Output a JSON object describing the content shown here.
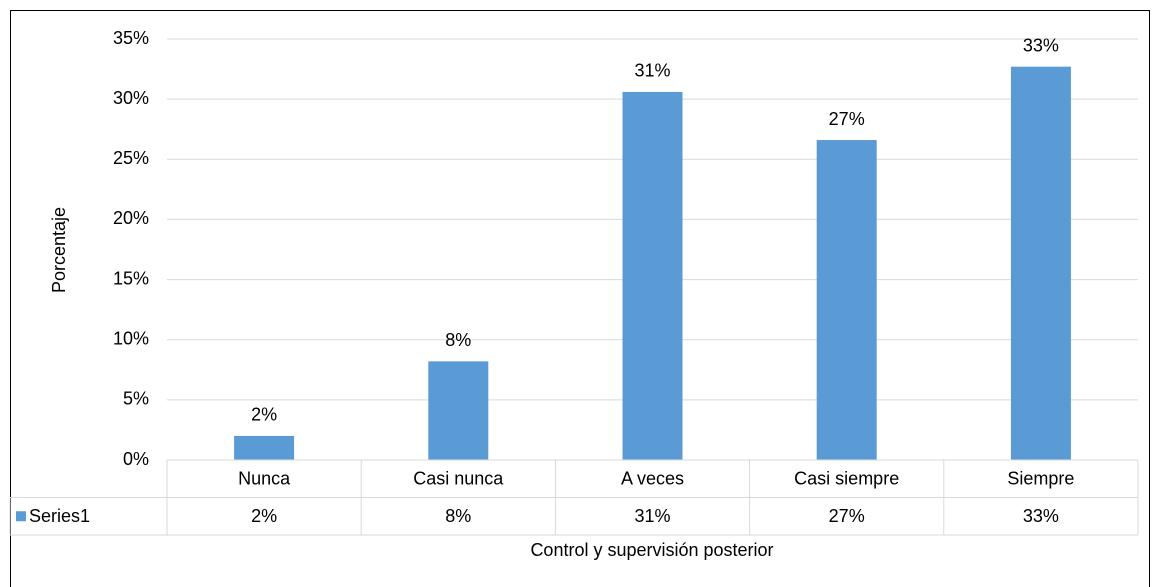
{
  "chart_data": {
    "type": "bar",
    "categories": [
      "Nunca",
      "Casi nunca",
      "A veces",
      "Casi siempre",
      "Siempre"
    ],
    "series": [
      {
        "name": "Series1",
        "color": "#5b9bd5",
        "values": [
          2.0,
          8.2,
          30.6,
          26.6,
          32.7
        ],
        "value_labels": [
          "2%",
          "8%",
          "31%",
          "27%",
          "33%"
        ]
      }
    ],
    "ylim": [
      0,
      35
    ],
    "yticks": [
      {
        "value": 0,
        "label": "0%"
      },
      {
        "value": 5,
        "label": "5%"
      },
      {
        "value": 10,
        "label": "10%"
      },
      {
        "value": 15,
        "label": "15%"
      },
      {
        "value": 20,
        "label": "20%"
      },
      {
        "value": 25,
        "label": "25%"
      },
      {
        "value": 30,
        "label": "30%"
      },
      {
        "value": 35,
        "label": "35%"
      }
    ],
    "ylabel": "Porcentaje",
    "xlabel": "Control y supervisión posterior",
    "grid": true,
    "data_table": true
  }
}
